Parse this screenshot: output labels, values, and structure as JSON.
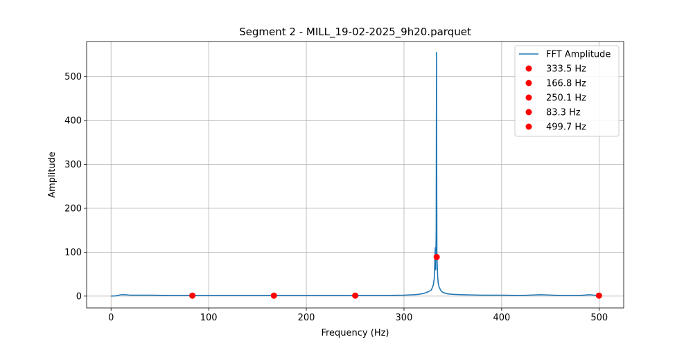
{
  "chart_data": {
    "type": "line",
    "title": "Segment 2 - MILL_19-02-2025_9h20.parquet",
    "xlabel": "Frequency (Hz)",
    "ylabel": "Amplitude",
    "xlim": [
      -25,
      525
    ],
    "ylim": [
      -27,
      580
    ],
    "xticks": [
      0,
      100,
      200,
      300,
      400,
      500
    ],
    "yticks": [
      0,
      100,
      200,
      300,
      400,
      500
    ],
    "grid": true,
    "legend_position": "top-right",
    "series": [
      {
        "name": "FFT Amplitude",
        "kind": "line",
        "color": "#1f77b4",
        "x": [
          0,
          5,
          10,
          15,
          20,
          30,
          40,
          60,
          80,
          100,
          150,
          200,
          250,
          280,
          300,
          310,
          315,
          320,
          325,
          328,
          330,
          331,
          332,
          332.5,
          333,
          333.3,
          333.5,
          333.7,
          334,
          334.5,
          335,
          336,
          338,
          340,
          345,
          350,
          360,
          380,
          400,
          420,
          440,
          460,
          480,
          490,
          500
        ],
        "y": [
          0,
          0.5,
          3,
          3,
          2,
          2,
          2,
          1.5,
          1.5,
          1.5,
          1.5,
          1.5,
          1.5,
          1.5,
          2,
          3,
          4,
          6,
          10,
          14,
          25,
          40,
          110,
          60,
          150,
          555,
          300,
          100,
          75,
          45,
          30,
          20,
          12,
          8,
          5,
          4,
          3,
          2,
          2,
          1.5,
          3,
          1.5,
          1.5,
          3,
          1
        ]
      },
      {
        "name": "peaks",
        "kind": "markers",
        "color": "#ff0000",
        "points": [
          {
            "label": "333.5 Hz",
            "x": 333.5,
            "y": 89
          },
          {
            "label": "166.8 Hz",
            "x": 166.8,
            "y": 1
          },
          {
            "label": "250.1 Hz",
            "x": 250.1,
            "y": 1
          },
          {
            "label": "83.3 Hz",
            "x": 83.3,
            "y": 1
          },
          {
            "label": "499.7 Hz",
            "x": 499.7,
            "y": 1
          }
        ]
      }
    ],
    "legend": [
      "FFT Amplitude",
      "333.5 Hz",
      "166.8 Hz",
      "250.1 Hz",
      "83.3 Hz",
      "499.7 Hz"
    ]
  }
}
